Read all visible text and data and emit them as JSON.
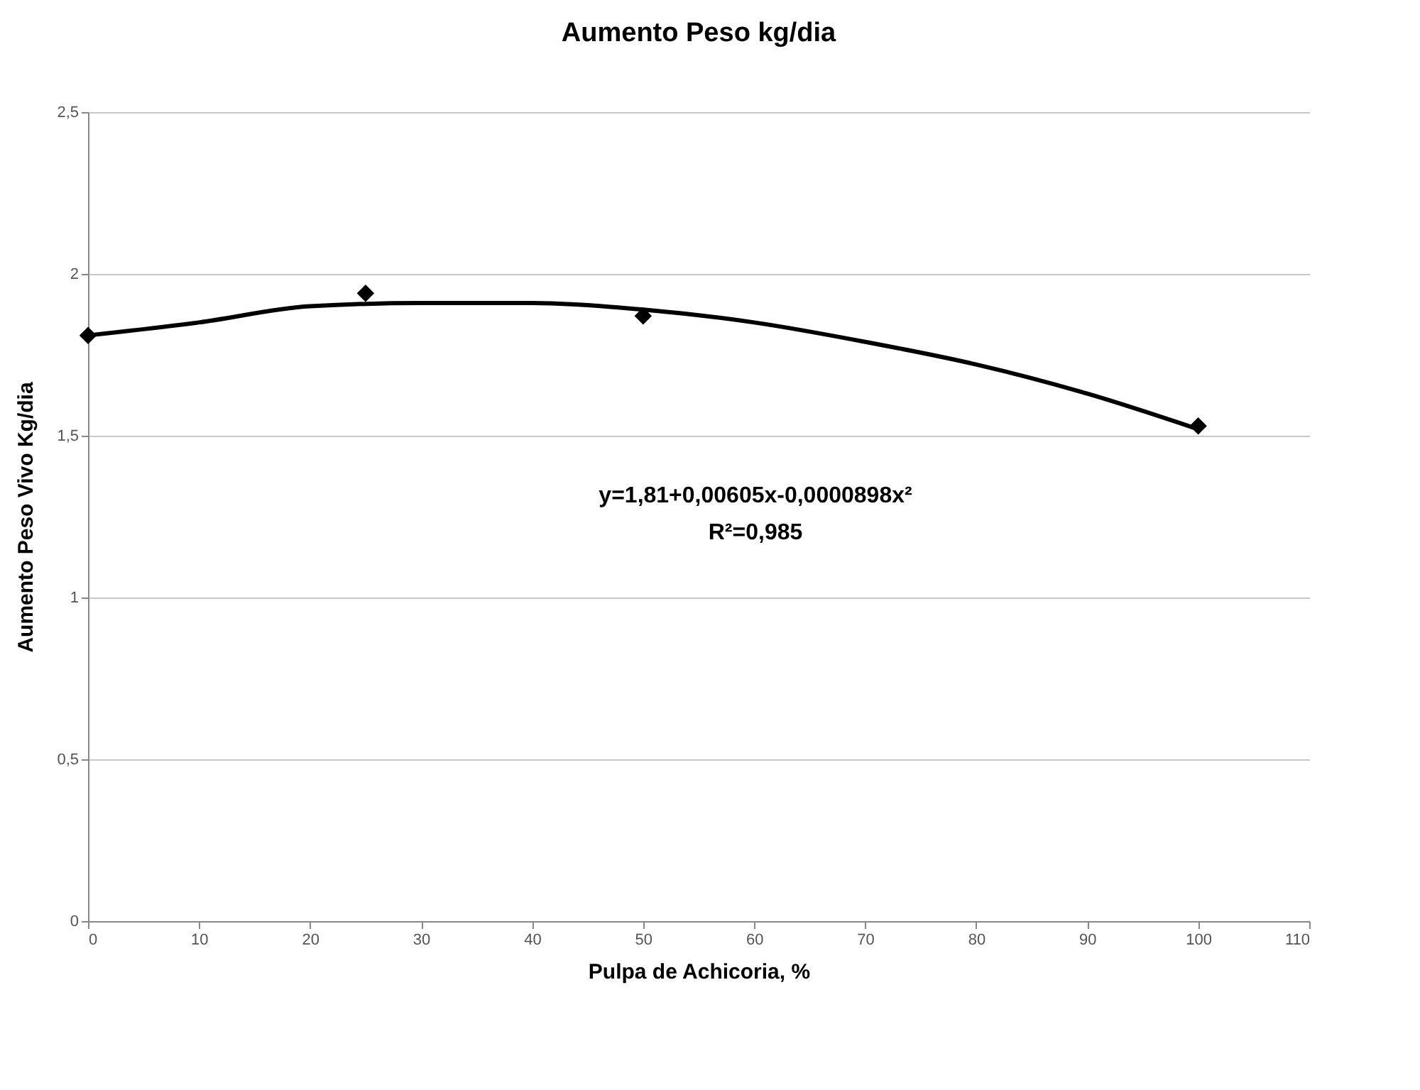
{
  "chart_data": {
    "type": "scatter",
    "title": "Aumento Peso kg/dia",
    "xlabel": "Pulpa de Achicoria, %",
    "ylabel": "Aumento Peso Vivo Kg/dia",
    "series": [
      {
        "color": "#000000",
        "x": [
          0,
          25,
          50,
          100
        ],
        "values": [
          1.81,
          1.94,
          1.87,
          1.53
        ],
        "marker": "diamond"
      },
      {
        "type": "line",
        "color": "#000000",
        "x": [
          0,
          10,
          20,
          30,
          40,
          50,
          60,
          70,
          80,
          90,
          100
        ],
        "values": [
          1.81,
          1.85,
          1.9,
          1.91,
          1.91,
          1.89,
          1.85,
          1.79,
          1.72,
          1.63,
          1.52
        ],
        "line_style": "solid",
        "marker": "none"
      }
    ],
    "annotations": [
      "y=1,81+0,00605x-0,0000898x²",
      "R²=0,985"
    ],
    "xlim": [
      0,
      110
    ],
    "xticks": [
      0,
      10,
      20,
      30,
      40,
      50,
      60,
      70,
      80,
      90,
      100,
      110
    ],
    "ylim": [
      0,
      2.5
    ],
    "yticks": [
      0,
      {
        "value": 0.5,
        "label": "0,5"
      },
      1,
      {
        "value": 1.5,
        "label": "1,5"
      },
      2,
      {
        "value": 2.5,
        "label": "2,5"
      }
    ],
    "grid": "y"
  }
}
